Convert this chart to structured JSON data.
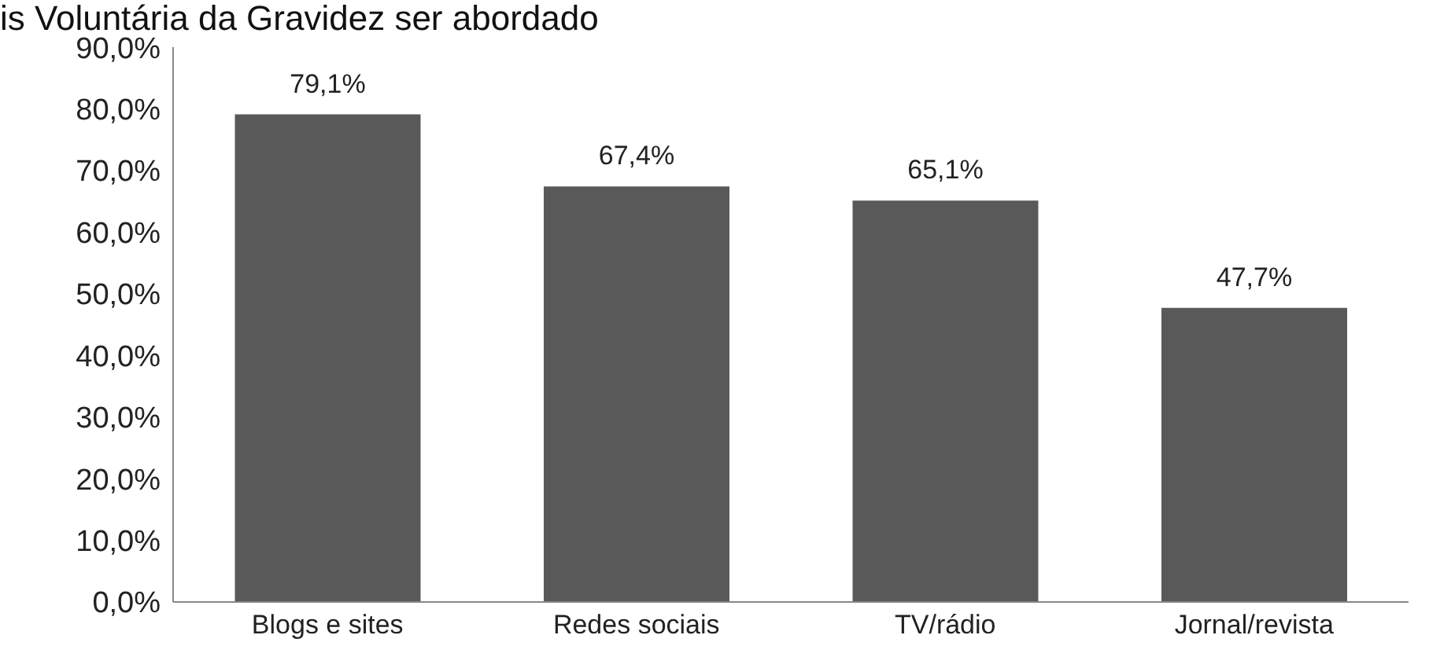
{
  "chart_data": {
    "type": "bar",
    "title": "is Voluntária da Gravidez ser abordado",
    "categories": [
      "Blogs e sites",
      "Redes sociais",
      "TV/rádio",
      "Jornal/revista"
    ],
    "values": [
      79.1,
      67.4,
      65.1,
      47.7
    ],
    "value_labels": [
      "79,1%",
      "67,4%",
      "65,1%",
      "47,7%"
    ],
    "color": "#595959",
    "ylim": [
      0,
      90
    ],
    "yticks": [
      {
        "value": 0,
        "label": "0,0%"
      },
      {
        "value": 10,
        "label": "10,0%"
      },
      {
        "value": 20,
        "label": "20,0%"
      },
      {
        "value": 30,
        "label": "30,0%"
      },
      {
        "value": 40,
        "label": "40,0%"
      },
      {
        "value": 50,
        "label": "50,0%"
      },
      {
        "value": 60,
        "label": "60,0%"
      },
      {
        "value": 70,
        "label": "70,0%"
      },
      {
        "value": 80,
        "label": "80,0%"
      },
      {
        "value": 90,
        "label": "90,0%"
      }
    ],
    "grid": false
  }
}
